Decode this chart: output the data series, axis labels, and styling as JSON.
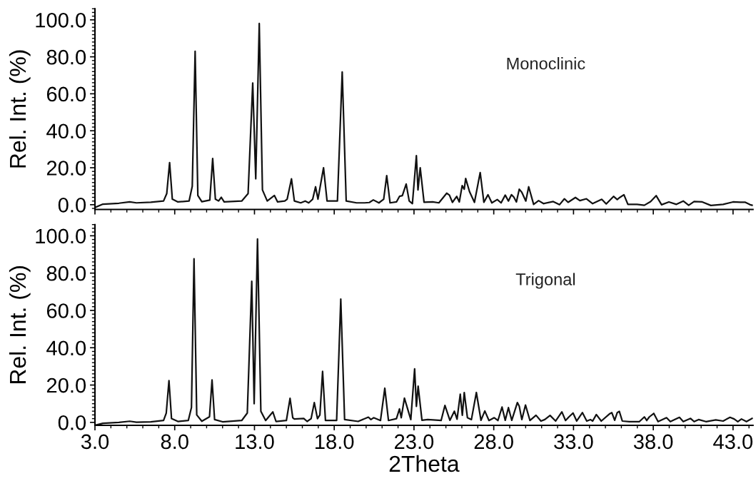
{
  "chart_data": [
    {
      "type": "line",
      "ylabel": "Rel. Int. (%)",
      "xlim": [
        3.0,
        44.25
      ],
      "ylim": [
        -2.6,
        106
      ],
      "xticks": [
        {
          "value": 3,
          "label": null
        },
        {
          "value": 8,
          "label": null
        },
        {
          "value": 13,
          "label": null
        },
        {
          "value": 18,
          "label": null
        },
        {
          "value": 23,
          "label": null
        },
        {
          "value": 28,
          "label": null
        },
        {
          "value": 33,
          "label": null
        },
        {
          "value": 38,
          "label": null
        },
        {
          "value": 43,
          "label": null
        }
      ],
      "yticks": [
        {
          "value": 0,
          "label": "0.0"
        },
        {
          "value": 20,
          "label": "20.0"
        },
        {
          "value": 40,
          "label": "40.0"
        },
        {
          "value": 60,
          "label": "60.0"
        },
        {
          "value": 80,
          "label": "80.0"
        },
        {
          "value": 100,
          "label": "100.0"
        }
      ],
      "tick_labels": "y",
      "grid": false,
      "legend": false,
      "marker": "none",
      "line_style": "solid",
      "series": [
        {
          "name": "Monoclinic",
          "color": "#111111",
          "x": [
            3.0,
            3.5,
            4.5,
            5.18,
            5.6,
            6.5,
            7.3,
            7.5,
            7.68,
            7.85,
            8.2,
            8.9,
            9.1,
            9.28,
            9.45,
            9.7,
            10.2,
            10.38,
            10.55,
            10.75,
            10.92,
            11.1,
            12.2,
            12.6,
            12.89,
            13.08,
            13.3,
            13.5,
            13.8,
            14.25,
            14.45,
            14.9,
            15.05,
            15.32,
            15.5,
            15.9,
            16.18,
            16.4,
            16.65,
            16.83,
            16.98,
            17.33,
            17.55,
            18.2,
            18.5,
            18.75,
            19.4,
            19.9,
            20.2,
            20.45,
            20.8,
            21.1,
            21.29,
            21.5,
            21.9,
            22.09,
            22.27,
            22.51,
            22.7,
            22.9,
            23.15,
            23.25,
            23.39,
            23.63,
            24.17,
            24.56,
            25.05,
            25.22,
            25.41,
            25.68,
            25.84,
            26.02,
            26.15,
            26.24,
            26.48,
            26.79,
            27.15,
            27.38,
            27.64,
            27.88,
            28.22,
            28.46,
            28.72,
            28.92,
            29.11,
            29.26,
            29.42,
            29.6,
            29.76,
            30.01,
            30.19,
            30.5,
            30.81,
            31.12,
            31.73,
            32.12,
            32.43,
            32.66,
            33.12,
            33.4,
            33.81,
            34.2,
            34.77,
            35.05,
            35.51,
            35.74,
            35.9,
            36.16,
            36.41,
            36.98,
            37.44,
            37.83,
            38.18,
            38.52,
            38.98,
            39.45,
            39.88,
            40.22,
            40.56,
            41.07,
            41.61,
            42.38,
            43.0,
            43.46,
            43.77,
            44.07,
            44.2
          ],
          "values": [
            -1.5,
            0.3,
            0.8,
            1.5,
            1.0,
            1.3,
            2,
            6,
            22.8,
            3,
            1.5,
            2,
            10,
            83,
            5,
            1.6,
            2.5,
            25,
            3,
            2,
            4,
            1.5,
            2,
            6,
            65.8,
            14,
            98,
            8,
            2,
            5,
            1.5,
            2,
            3,
            14,
            2,
            1,
            2,
            1,
            3,
            9.7,
            3,
            20,
            2,
            2,
            71.8,
            2,
            1,
            1,
            1.2,
            2.6,
            1.0,
            3,
            15.7,
            1,
            1.5,
            4.5,
            4.9,
            11.2,
            2,
            0.6,
            26.5,
            8,
            20,
            1.3,
            1.5,
            1,
            6.2,
            5.2,
            1.3,
            4.5,
            1.5,
            10.3,
            8.4,
            14.2,
            7.1,
            1.3,
            17.4,
            1.3,
            5.4,
            1,
            2.8,
            1,
            5.2,
            2,
            5.4,
            4.1,
            1.5,
            8.4,
            6.7,
            2,
            9.7,
            0.2,
            2.2,
            0.6,
            1.7,
            0,
            3.2,
            1.3,
            3.9,
            2.2,
            3.2,
            0.6,
            2.9,
            0.4,
            4.5,
            2.8,
            3.9,
            5.4,
            0.2,
            0.2,
            -0.3,
            1.7,
            4.9,
            0,
            1.5,
            0.2,
            2,
            -0.3,
            1.7,
            1.5,
            -0.4,
            0.2,
            1.5,
            1.3,
            1.3,
            0,
            -0.3
          ]
        }
      ]
    },
    {
      "type": "line",
      "ylabel": "Rel. Int. (%)",
      "xlabel": "2Theta",
      "xlim": [
        3.0,
        44.25
      ],
      "ylim": [
        -1.6,
        106
      ],
      "xticks": [
        {
          "value": 3,
          "label": "3.0"
        },
        {
          "value": 8,
          "label": "8.0"
        },
        {
          "value": 13,
          "label": "13.0"
        },
        {
          "value": 18,
          "label": "18.0"
        },
        {
          "value": 23,
          "label": "23.0"
        },
        {
          "value": 28,
          "label": "28.0"
        },
        {
          "value": 33,
          "label": "33.0"
        },
        {
          "value": 38,
          "label": "38.0"
        },
        {
          "value": 43,
          "label": "43.0"
        }
      ],
      "yticks": [
        {
          "value": 0,
          "label": "0.0"
        },
        {
          "value": 20,
          "label": "20.0"
        },
        {
          "value": 40,
          "label": "40.0"
        },
        {
          "value": 60,
          "label": "60.0"
        },
        {
          "value": 80,
          "label": "80.0"
        },
        {
          "value": 100,
          "label": "100.0"
        }
      ],
      "grid": false,
      "legend": false,
      "marker": "none",
      "line_style": "solid",
      "series": [
        {
          "name": "Trigonal",
          "color": "#111111",
          "x": [
            3.0,
            3.5,
            4.5,
            5.18,
            5.6,
            6.5,
            7.3,
            7.47,
            7.64,
            7.8,
            8.2,
            8.85,
            9.05,
            9.21,
            9.38,
            9.7,
            10.18,
            10.34,
            10.5,
            11.0,
            12.2,
            12.55,
            12.83,
            12.98,
            13.19,
            13.4,
            13.7,
            14.15,
            14.35,
            15.0,
            15.23,
            15.4,
            15.5,
            16.09,
            16.3,
            16.55,
            16.75,
            16.95,
            17.1,
            17.27,
            17.45,
            18.15,
            18.41,
            18.65,
            19.5,
            20.14,
            20.3,
            20.47,
            20.9,
            21.17,
            21.4,
            21.9,
            22.09,
            22.2,
            22.4,
            22.8,
            23.04,
            23.15,
            23.26,
            23.5,
            23.86,
            24.7,
            24.94,
            25.25,
            25.53,
            25.7,
            25.9,
            26.03,
            26.15,
            26.35,
            26.6,
            26.91,
            27.2,
            27.44,
            27.7,
            28.03,
            28.26,
            28.52,
            28.72,
            28.92,
            29.13,
            29.48,
            29.6,
            29.76,
            29.99,
            30.27,
            30.65,
            30.96,
            31.2,
            31.53,
            31.88,
            32.27,
            32.5,
            32.71,
            32.97,
            33.2,
            33.56,
            33.83,
            34.06,
            34.2,
            34.43,
            34.74,
            35.25,
            35.4,
            35.58,
            35.74,
            35.87,
            36.06,
            36.5,
            37.13,
            37.44,
            37.59,
            37.75,
            38.03,
            38.3,
            38.83,
            39.07,
            39.64,
            39.88,
            40.34,
            40.56,
            40.84,
            41.3,
            41.92,
            42.38,
            42.81,
            43.07,
            43.3,
            43.53,
            43.84,
            44.2
          ],
          "values": [
            -1.6,
            -0.5,
            0,
            0.6,
            0.1,
            0.3,
            1,
            5,
            22.4,
            2,
            0.5,
            1,
            8,
            87.7,
            4,
            0.6,
            3,
            22.7,
            1.5,
            0.3,
            1,
            5,
            75.6,
            10,
            98.3,
            6,
            1,
            5.6,
            0.5,
            1,
            12.9,
            2.5,
            1.8,
            2.1,
            0.5,
            2,
            10.6,
            2,
            4,
            27.3,
            1,
            1,
            66.1,
            1.5,
            0.5,
            2.8,
            1.5,
            2.5,
            1,
            18.3,
            1,
            2,
            7.2,
            2.5,
            13,
            1.5,
            28.7,
            8.6,
            19.4,
            1.1,
            1.5,
            1,
            9.1,
            1.1,
            6,
            1.7,
            15.1,
            3.8,
            16,
            2.5,
            1.5,
            16,
            1.1,
            6.1,
            1,
            2.5,
            1,
            8.2,
            1.1,
            7.9,
            1.1,
            10.6,
            8.6,
            1.5,
            9.3,
            1,
            3.8,
            0.7,
            1.5,
            3.7,
            0.7,
            5.6,
            1,
            2.9,
            5,
            0.7,
            5.2,
            0.7,
            1.5,
            0.7,
            4.2,
            0.7,
            4.5,
            5.2,
            1.1,
            5.2,
            5.9,
            0.7,
            0.4,
            0.4,
            2.9,
            1,
            2.9,
            4.8,
            0.4,
            2.5,
            0.4,
            2.7,
            0.4,
            2.1,
            0.4,
            1.5,
            0.4,
            1.3,
            0.7,
            2.7,
            1.8,
            0.4,
            1.8,
            0.4,
            2.1
          ]
        }
      ]
    }
  ]
}
